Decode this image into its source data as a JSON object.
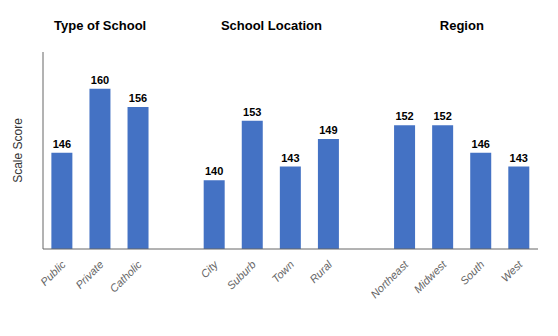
{
  "chart_data": {
    "type": "bar",
    "categories": [
      "Public",
      "Private",
      "Catholic",
      "City",
      "Suburb",
      "Town",
      "Rural",
      "Northeast",
      "Midwest",
      "South",
      "West"
    ],
    "values": [
      146,
      160,
      156,
      140,
      153,
      143,
      149,
      152,
      152,
      146,
      143
    ],
    "color": "#4472C4",
    "ylabel": "Scale Score",
    "ylim": [
      125,
      168
    ],
    "data_labels": true,
    "tick_labels": "x",
    "grid": false,
    "annotations": [
      {
        "text": "Type of School",
        "categories": [
          "Public",
          "Private",
          "Catholic"
        ]
      },
      {
        "text": "School Location",
        "categories": [
          "City",
          "Suburb",
          "Town",
          "Rural"
        ]
      },
      {
        "text": "Region",
        "categories": [
          "Northeast",
          "Midwest",
          "South",
          "West"
        ]
      }
    ]
  }
}
